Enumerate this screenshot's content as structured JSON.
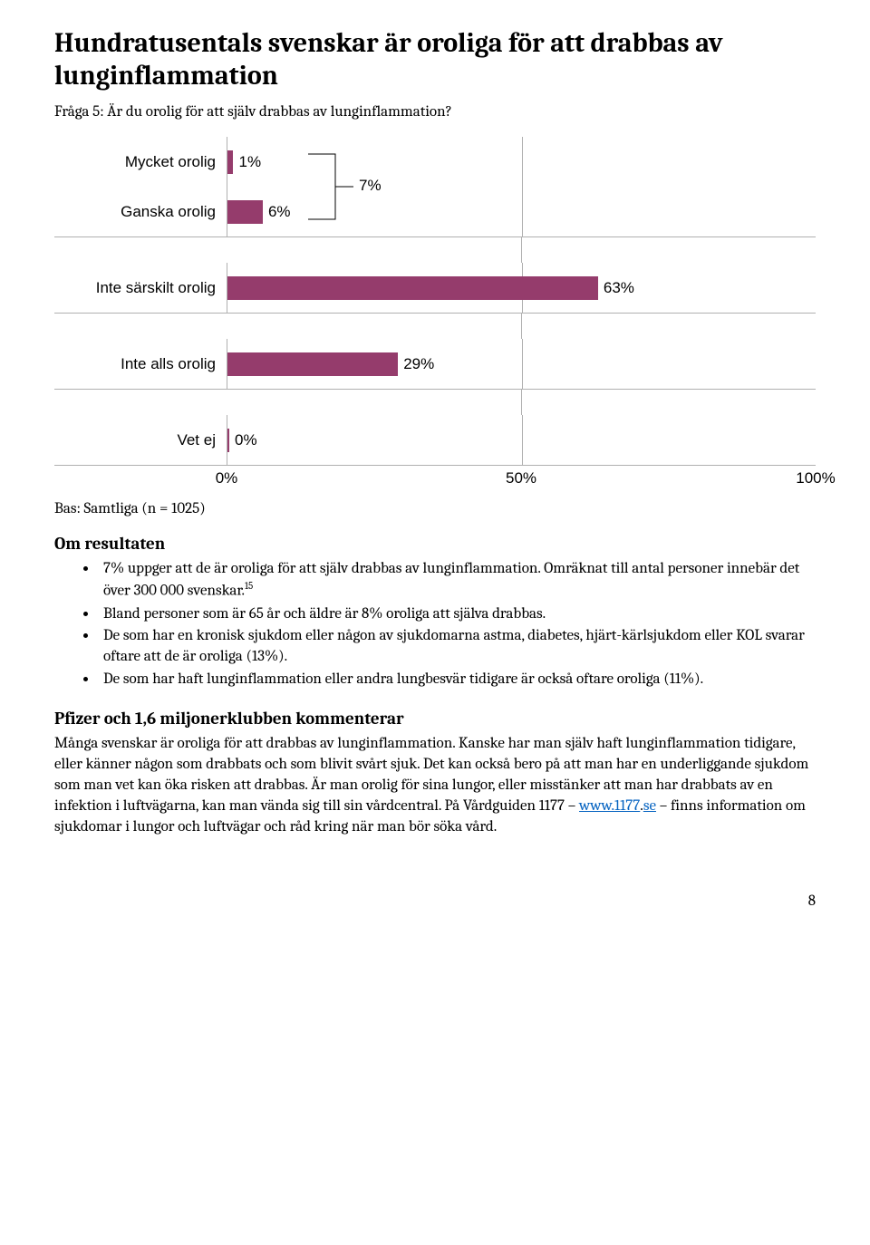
{
  "title": "Hundratusentals svenskar är oroliga för att drabbas av lunginflammation",
  "subtitle": "Fråga 5: Är du orolig för att själv drabbas av lunginflammation?",
  "chart": {
    "type": "bar-horizontal",
    "bar_color": "#953c6c",
    "grid_color": "#b0b0b0",
    "background_color": "#ffffff",
    "label_font": "Arial",
    "label_fontsize": 17,
    "x_ticks": [
      "0%",
      "50%",
      "100%"
    ],
    "max_value": 100,
    "groups": [
      {
        "bars": [
          {
            "label": "Mycket orolig",
            "value": 1,
            "value_label": "1%"
          },
          {
            "label": "Ganska orolig",
            "value": 6,
            "value_label": "6%"
          }
        ],
        "bracket": {
          "label": "7%"
        }
      },
      {
        "bars": [
          {
            "label": "Inte särskilt orolig",
            "value": 63,
            "value_label": "63%"
          }
        ]
      },
      {
        "bars": [
          {
            "label": "Inte alls orolig",
            "value": 29,
            "value_label": "29%"
          }
        ]
      },
      {
        "bars": [
          {
            "label": "Vet ej",
            "value": 0,
            "value_label": "0%"
          }
        ]
      }
    ]
  },
  "base_text": "Bas: Samtliga (n = 1025)",
  "results_heading": "Om resultaten",
  "bullets": [
    {
      "text_before": "7% uppger att de är oroliga för att själv drabbas av lunginflammation. Omräknat till antal personer innebär det över 300 000 svenskar.",
      "sup": "15",
      "text_after": ""
    },
    {
      "text_before": "Bland personer som är 65 år och äldre är 8% oroliga att själva drabbas.",
      "sup": "",
      "text_after": ""
    },
    {
      "text_before": "De som har en kronisk sjukdom eller någon av sjukdomarna astma, diabetes, hjärt-kärlsjukdom eller KOL svarar oftare att de är oroliga (13%).",
      "sup": "",
      "text_after": ""
    },
    {
      "text_before": "De som har haft lunginflammation eller andra lungbesvär tidigare är också oftare oroliga (11%).",
      "sup": "",
      "text_after": ""
    }
  ],
  "comment_heading": "Pfizer och 1,6 miljonerklubben kommenterar",
  "paragraph": {
    "part1": "Många svenskar är oroliga för att drabbas av lunginflammation. Kanske har man själv haft lunginflammation tidigare, eller känner någon som drabbats och som blivit svårt sjuk. Det kan också bero på att man har en underliggande sjukdom som man vet kan öka risken att drabbas. Är man orolig för sina lungor, eller misstänker att man har drabbats av en infektion i luftvägarna, kan man vända sig till sin vårdcentral. På Vårdguiden 1177 – ",
    "link1_text": "www.1177",
    "part2": ".",
    "link2_text": "se",
    "part3": " – finns information om sjukdomar i lungor och luftvägar och råd kring när man bör söka vård."
  },
  "page_number": "8"
}
